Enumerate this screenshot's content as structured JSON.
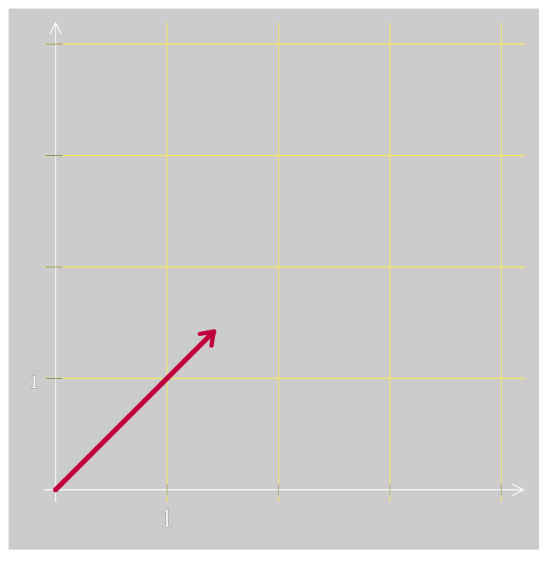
{
  "diagram": {
    "x_axis": {
      "ticks": [
        0,
        1,
        2,
        3,
        4
      ],
      "labels": [
        {
          "value": 1,
          "text": "1"
        }
      ]
    },
    "y_axis": {
      "ticks": [
        0,
        1,
        2,
        3,
        4
      ],
      "labels": [
        {
          "value": 1,
          "text": "i"
        }
      ]
    },
    "vector": {
      "from": [
        0,
        0
      ],
      "to": [
        1.42,
        1.42
      ]
    },
    "colors": {
      "background": "#cccccc",
      "grid": "#f5ea5e",
      "axes": "#ffffff",
      "vector": "#c0003c",
      "labels": "#ffffff"
    }
  }
}
